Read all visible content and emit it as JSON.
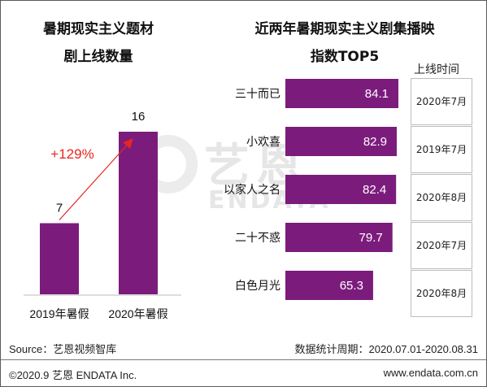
{
  "chart_data": [
    {
      "type": "bar",
      "title": "暑期现实主义题材剧上线数量",
      "title_lines": [
        "暑期现实主义题材",
        "剧上线数量"
      ],
      "categories": [
        "2019年暑假",
        "2020年暑假"
      ],
      "values": [
        7,
        16
      ],
      "value_labels": [
        "7",
        "16"
      ],
      "annotation": "+129%",
      "annotation_color": "#e8251f",
      "bar_color": "#7b1c7c",
      "grid": false
    },
    {
      "type": "bar",
      "orientation": "horizontal",
      "title": "近两年暑期现实主义剧集播映指数TOP5",
      "title_lines": [
        "近两年暑期现实主义剧集播映",
        "指数TOP5"
      ],
      "categories": [
        "三十而已",
        "小欢喜",
        "以家人之名",
        "二十不惑",
        "白色月光"
      ],
      "values": [
        84.1,
        82.9,
        82.4,
        79.7,
        65.3
      ],
      "value_labels": [
        "84.1",
        "82.9",
        "82.4",
        "79.7",
        "65.3"
      ],
      "release_header": "上线时间",
      "release_dates": [
        "2020年7月",
        "2019年7月",
        "2020年8月",
        "2020年7月",
        "2020年8月"
      ],
      "bar_color": "#7b1c7c",
      "grid": false
    }
  ],
  "watermark": {
    "cn": "艺恩",
    "en": "ENDATA"
  },
  "footer": {
    "source": "Source：艺恩视频智库",
    "period": "数据统计周期：2020.07.01-2020.08.31",
    "copyright": "©2020.9 艺恩 ENDATA Inc.",
    "website": "www.endata.com.cn"
  }
}
